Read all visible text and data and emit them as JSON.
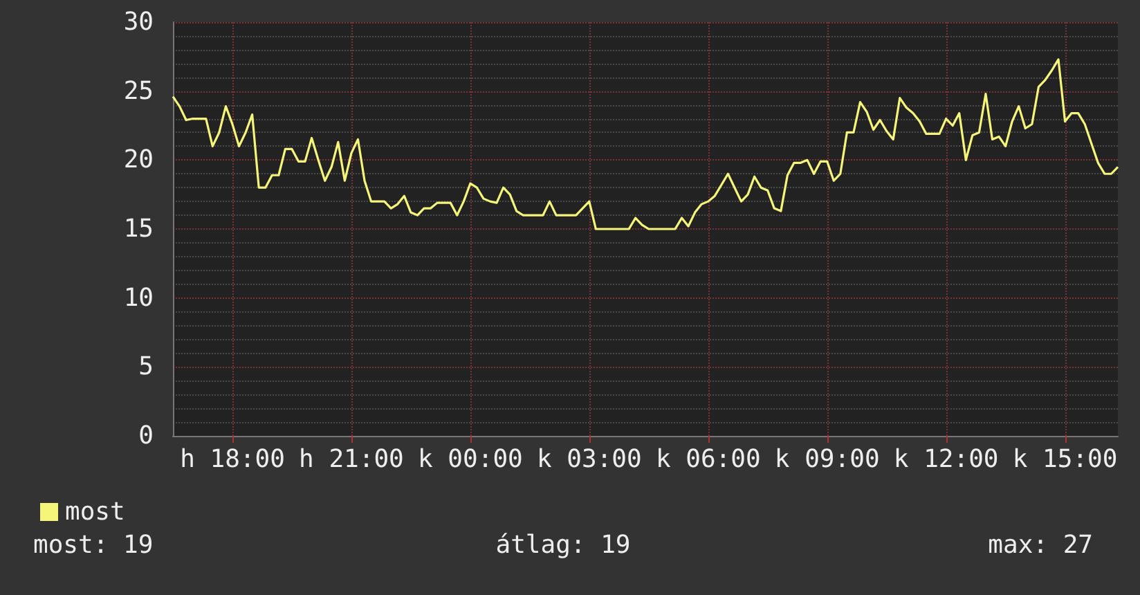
{
  "chart_data": {
    "type": "line",
    "legend": "bottom left",
    "grid": true,
    "marker": "none",
    "line_style": "solid",
    "categories": [
      null,
      null,
      null,
      null,
      null,
      null,
      null,
      null,
      null,
      "h 18:00",
      null,
      null,
      null,
      null,
      null,
      null,
      null,
      null,
      null,
      null,
      null,
      null,
      null,
      null,
      null,
      null,
      null,
      "h 21:00",
      null,
      null,
      null,
      null,
      null,
      null,
      null,
      null,
      null,
      null,
      null,
      null,
      null,
      null,
      null,
      null,
      null,
      "k 00:00",
      null,
      null,
      null,
      null,
      null,
      null,
      null,
      null,
      null,
      null,
      null,
      null,
      null,
      null,
      null,
      null,
      null,
      "k 03:00",
      null,
      null,
      null,
      null,
      null,
      null,
      null,
      null,
      null,
      null,
      null,
      null,
      null,
      null,
      null,
      null,
      null,
      "k 06:00",
      null,
      null,
      null,
      null,
      null,
      null,
      null,
      null,
      null,
      null,
      null,
      null,
      null,
      null,
      null,
      null,
      null,
      "k 09:00",
      null,
      null,
      null,
      null,
      null,
      null,
      null,
      null,
      null,
      null,
      null,
      null,
      null,
      null,
      null,
      null,
      null,
      "k 12:00",
      null,
      null,
      null,
      null,
      null,
      null,
      null,
      null,
      null,
      null,
      null,
      null,
      null,
      null,
      null,
      null,
      null,
      "k 15:00",
      null,
      null,
      null,
      null,
      null,
      null,
      null,
      null
    ],
    "ylim": [
      0,
      30
    ],
    "yticks": [
      0,
      5,
      10,
      15,
      20,
      25,
      30
    ],
    "annotations": [
      "most: 19",
      "átlag: 19",
      "max: 27"
    ],
    "series": [
      {
        "name": "most",
        "color": "#f5f57a",
        "values": [
          24.6,
          23.9,
          22.9,
          23,
          23,
          23,
          21,
          22,
          23.9,
          22.6,
          21,
          22,
          23.3,
          18,
          18,
          18.9,
          18.9,
          20.8,
          20.8,
          19.9,
          19.9,
          21.6,
          20,
          18.5,
          19.5,
          21.3,
          18.5,
          20.5,
          21.5,
          18.5,
          17,
          17,
          17,
          16.5,
          16.8,
          17.4,
          16.2,
          16,
          16.5,
          16.5,
          16.9,
          16.9,
          16.9,
          16,
          17,
          18.3,
          18,
          17.2,
          17,
          16.9,
          18,
          17.5,
          16.3,
          16,
          16,
          16,
          16,
          17,
          16,
          16,
          16,
          16,
          16.5,
          17,
          15,
          15,
          15,
          15,
          15,
          15,
          15.8,
          15.3,
          15,
          15,
          15,
          15,
          15,
          15.8,
          15.2,
          16.2,
          16.8,
          17,
          17.4,
          18.2,
          19,
          18,
          17,
          17.5,
          18.8,
          18,
          17.8,
          16.5,
          16.3,
          18.9,
          19.8,
          19.8,
          20,
          19,
          19.9,
          19.9,
          18.5,
          19,
          22,
          22,
          24.2,
          23.5,
          22.2,
          22.9,
          22.1,
          21.5,
          24.5,
          23.8,
          23.4,
          22.8,
          21.9,
          21.9,
          21.9,
          23,
          22.5,
          23.4,
          20,
          21.8,
          22,
          24.8,
          21.5,
          21.7,
          21,
          22.8,
          23.9,
          22.3,
          22.6,
          25.3,
          25.8,
          26.5,
          27.3,
          22.8,
          23.4,
          23.4,
          22.6,
          21.2,
          19.8,
          19,
          19,
          19.5
        ]
      }
    ]
  }
}
